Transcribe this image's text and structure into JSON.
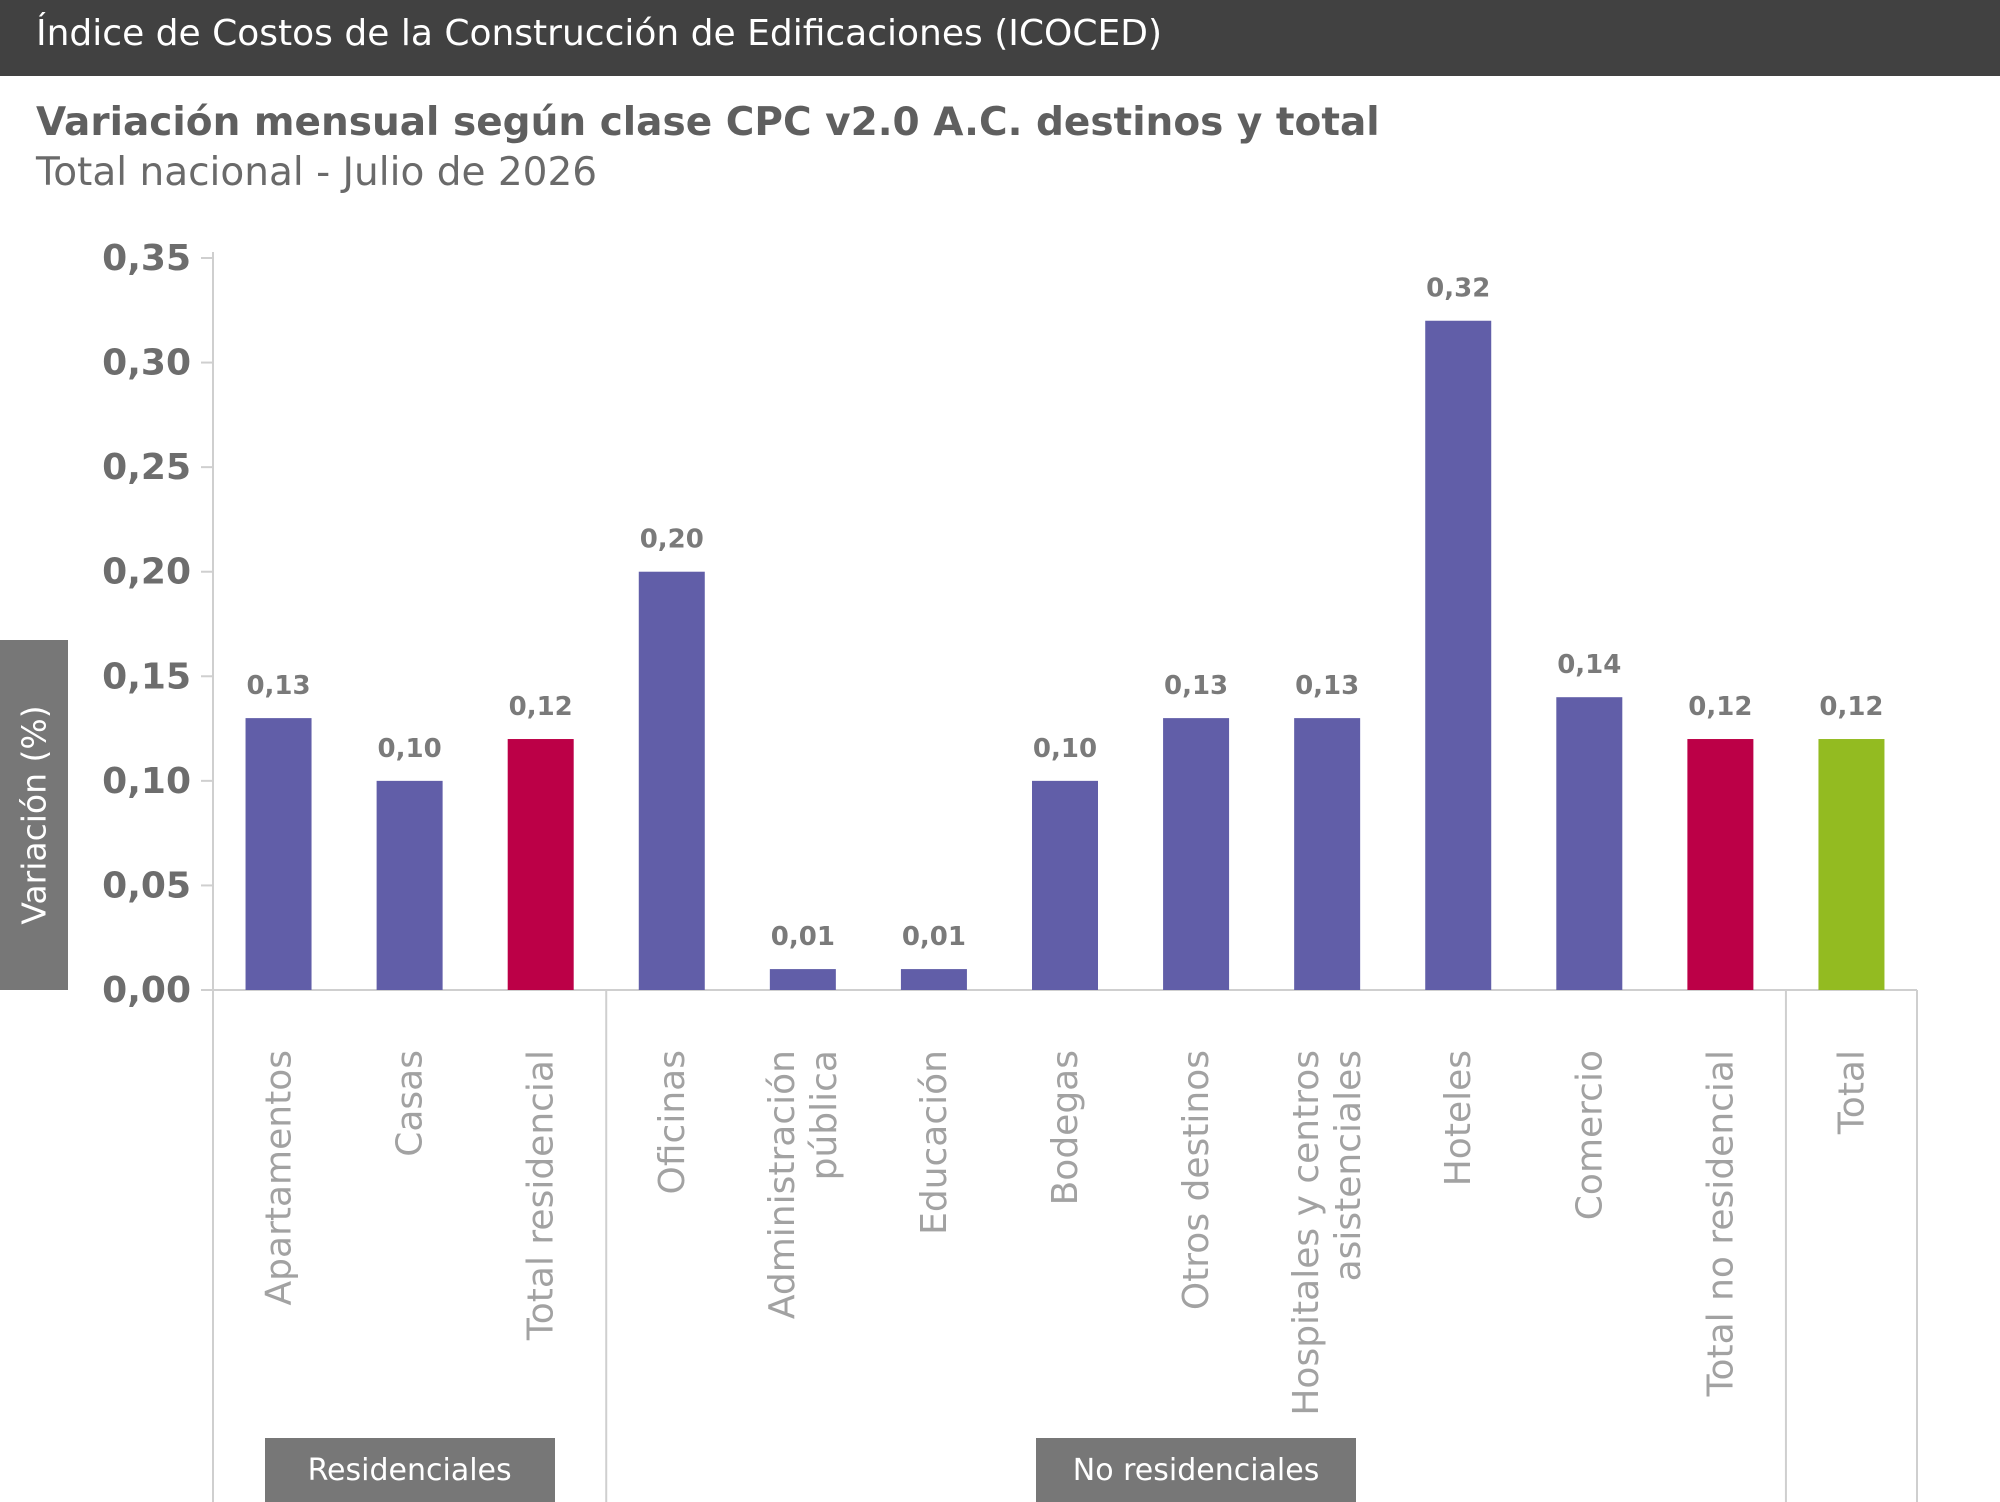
{
  "header": {
    "title": "Índice de Costos de la Construcción de Edificaciones (ICOCED)"
  },
  "chart_data": {
    "type": "bar",
    "title": "Variación mensual según clase CPC v2.0 A.C. destinos y total",
    "subtitle": "Total nacional - Julio de 2026",
    "ylabel": "Variación (%)",
    "xlabel": "",
    "ylim": [
      0,
      0.35
    ],
    "yticks": [
      {
        "value": 0.0,
        "label": "0,00"
      },
      {
        "value": 0.05,
        "label": "0,05"
      },
      {
        "value": 0.1,
        "label": "0,10"
      },
      {
        "value": 0.15,
        "label": "0,15"
      },
      {
        "value": 0.2,
        "label": "0,20"
      },
      {
        "value": 0.25,
        "label": "0,25"
      },
      {
        "value": 0.3,
        "label": "0,30"
      },
      {
        "value": 0.35,
        "label": "0,35"
      }
    ],
    "categories": [
      [
        "Apartamentos"
      ],
      [
        "Casas"
      ],
      [
        "Total residencial"
      ],
      [
        "Oficinas"
      ],
      [
        "Administración",
        "pública"
      ],
      [
        "Educación"
      ],
      [
        "Bodegas"
      ],
      [
        "Otros destinos"
      ],
      [
        "Hospitales y centros",
        "asistenciales"
      ],
      [
        "Hoteles"
      ],
      [
        "Comercio"
      ],
      [
        "Total no residencial"
      ],
      [
        "Total"
      ]
    ],
    "values": [
      0.13,
      0.1,
      0.12,
      0.2,
      0.01,
      0.01,
      0.1,
      0.13,
      0.13,
      0.32,
      0.14,
      0.12,
      0.12
    ],
    "value_labels": [
      "0,13",
      "0,10",
      "0,12",
      "0,20",
      "0,01",
      "0,01",
      "0,10",
      "0,13",
      "0,13",
      "0,32",
      "0,14",
      "0,12",
      "0,12"
    ],
    "bar_colors": [
      "#615ea8",
      "#615ea8",
      "#bc0047",
      "#615ea8",
      "#615ea8",
      "#615ea8",
      "#615ea8",
      "#615ea8",
      "#615ea8",
      "#615ea8",
      "#615ea8",
      "#bc0047",
      "#93bb21"
    ],
    "groups": [
      {
        "label": "Residenciales",
        "start": 0,
        "end": 2
      },
      {
        "label": "No residenciales",
        "start": 3,
        "end": 11
      },
      {
        "label": "",
        "start": 12,
        "end": 12
      }
    ],
    "grid": false,
    "legend": "none"
  }
}
